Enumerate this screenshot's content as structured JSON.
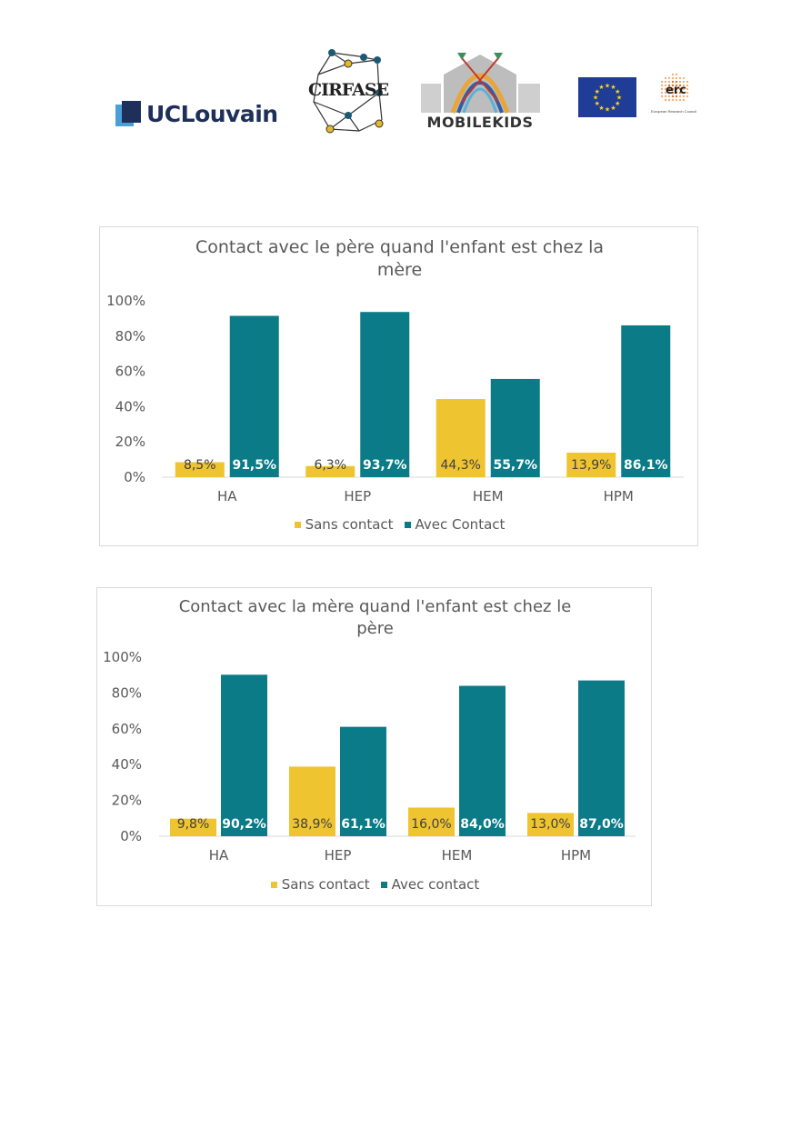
{
  "logos": {
    "uclouvain": "UCLouvain",
    "cirfase": "CIRFASE",
    "mobilekids": "MOBILEKIDS",
    "erc": "erc",
    "erc_sub": "European Research Council"
  },
  "colors": {
    "sans": "#efc431",
    "avec": "#0b7b87"
  },
  "chart_data": [
    {
      "type": "bar",
      "title": "Contact avec le père quand l'enfant est chez la mère",
      "categories": [
        "HA",
        "HEP",
        "HEM",
        "HPM"
      ],
      "yticks": [
        "0%",
        "20%",
        "40%",
        "60%",
        "80%",
        "100%"
      ],
      "ylim": [
        0,
        100
      ],
      "series": [
        {
          "name": "Sans contact",
          "values": [
            8.5,
            6.3,
            44.3,
            13.9
          ],
          "labels": [
            "8,5%",
            "6,3%",
            "44,3%",
            "13,9%"
          ]
        },
        {
          "name": "Avec Contact",
          "values": [
            91.5,
            93.7,
            55.7,
            86.1
          ],
          "labels": [
            "91,5%",
            "93,7%",
            "55,7%",
            "86,1%"
          ]
        }
      ],
      "legend": "bottom"
    },
    {
      "type": "bar",
      "title": "Contact avec la mère quand l'enfant est chez le père",
      "categories": [
        "HA",
        "HEP",
        "HEM",
        "HPM"
      ],
      "yticks": [
        "0%",
        "20%",
        "40%",
        "60%",
        "80%",
        "100%"
      ],
      "ylim": [
        0,
        100
      ],
      "series": [
        {
          "name": "Sans contact",
          "values": [
            9.8,
            38.9,
            16.0,
            13.0
          ],
          "labels": [
            "9,8%",
            "38,9%",
            "16,0%",
            "13,0%"
          ]
        },
        {
          "name": "Avec contact",
          "values": [
            90.2,
            61.1,
            84.0,
            87.0
          ],
          "labels": [
            "90,2%",
            "61,1%",
            "84,0%",
            "87,0%"
          ]
        }
      ],
      "legend": "bottom"
    }
  ]
}
